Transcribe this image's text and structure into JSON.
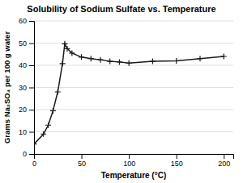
{
  "chart_data": {
    "type": "line",
    "title": "Solubility of Sodium Sulfate vs. Temperature",
    "xlabel": "Temperature (°C)",
    "ylabel": "Grams Na₂SO₄ per 100 g water",
    "x": [
      0,
      10,
      15,
      20,
      25,
      30,
      32.4,
      35,
      40,
      50,
      60,
      70,
      80,
      90,
      100,
      125,
      150,
      175,
      200
    ],
    "values": [
      4.5,
      9.0,
      13.0,
      19.5,
      28.0,
      40.8,
      49.7,
      47.5,
      45.5,
      43.7,
      43.0,
      42.5,
      41.8,
      41.5,
      41.0,
      41.8,
      42.0,
      43.0,
      44.0
    ],
    "xlim": [
      0,
      210
    ],
    "ylim": [
      0,
      60
    ],
    "xticks": [
      0,
      50,
      100,
      150,
      200
    ],
    "yticks": [
      0,
      10,
      20,
      30,
      40,
      50,
      60
    ],
    "color": "#1a1a1a",
    "marker": "plus",
    "grid": "y"
  }
}
